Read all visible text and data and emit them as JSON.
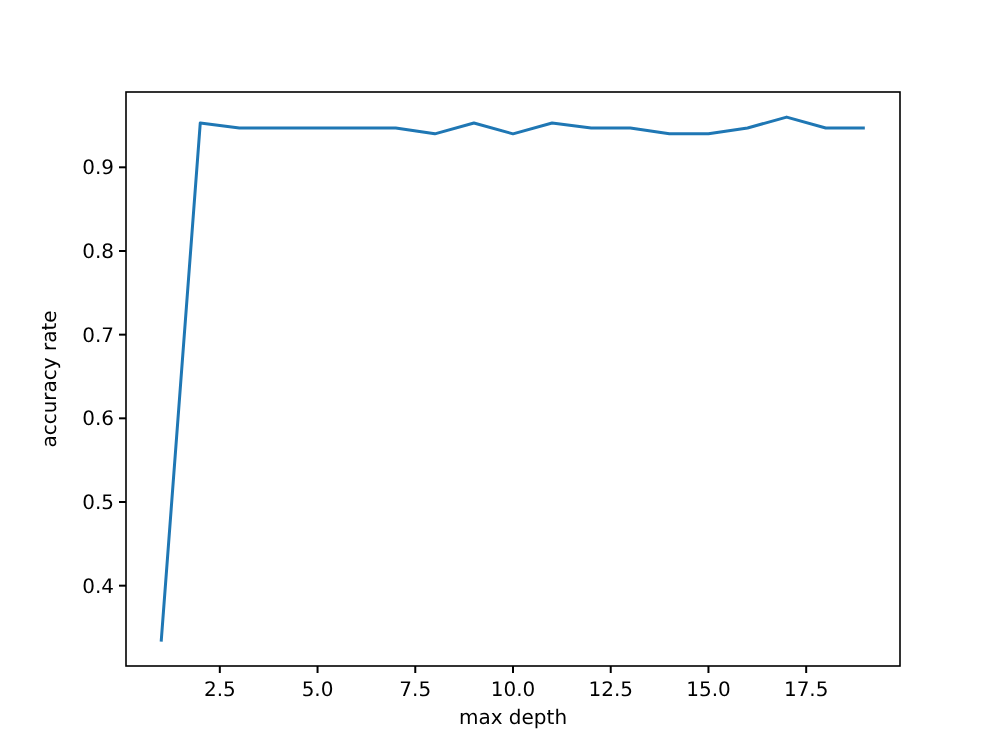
{
  "chart_data": {
    "type": "line",
    "xlabel": "max depth",
    "ylabel": "accuracy rate",
    "x": [
      1,
      2,
      3,
      4,
      5,
      6,
      7,
      8,
      9,
      10,
      11,
      12,
      13,
      14,
      15,
      16,
      17,
      18,
      19
    ],
    "series": [
      {
        "color": "#1f77b4",
        "values": [
          0.333,
          0.953,
          0.947,
          0.947,
          0.947,
          0.947,
          0.947,
          0.94,
          0.953,
          0.94,
          0.953,
          0.947,
          0.947,
          0.94,
          0.94,
          0.947,
          0.96,
          0.947,
          0.947
        ]
      }
    ],
    "xlim": [
      0.1,
      19.9
    ],
    "xticks": [
      2.5,
      {
        "value": 5,
        "label": "5.0"
      },
      7.5,
      {
        "value": 10,
        "label": "10.0"
      },
      12.5,
      {
        "value": 15,
        "label": "15.0"
      },
      17.5
    ],
    "ylim": [
      0.304,
      0.99
    ],
    "yticks": [
      0.4,
      0.5,
      0.6,
      0.7,
      0.8,
      0.9
    ],
    "grid": false,
    "marker": "none",
    "line_style": "solid"
  }
}
